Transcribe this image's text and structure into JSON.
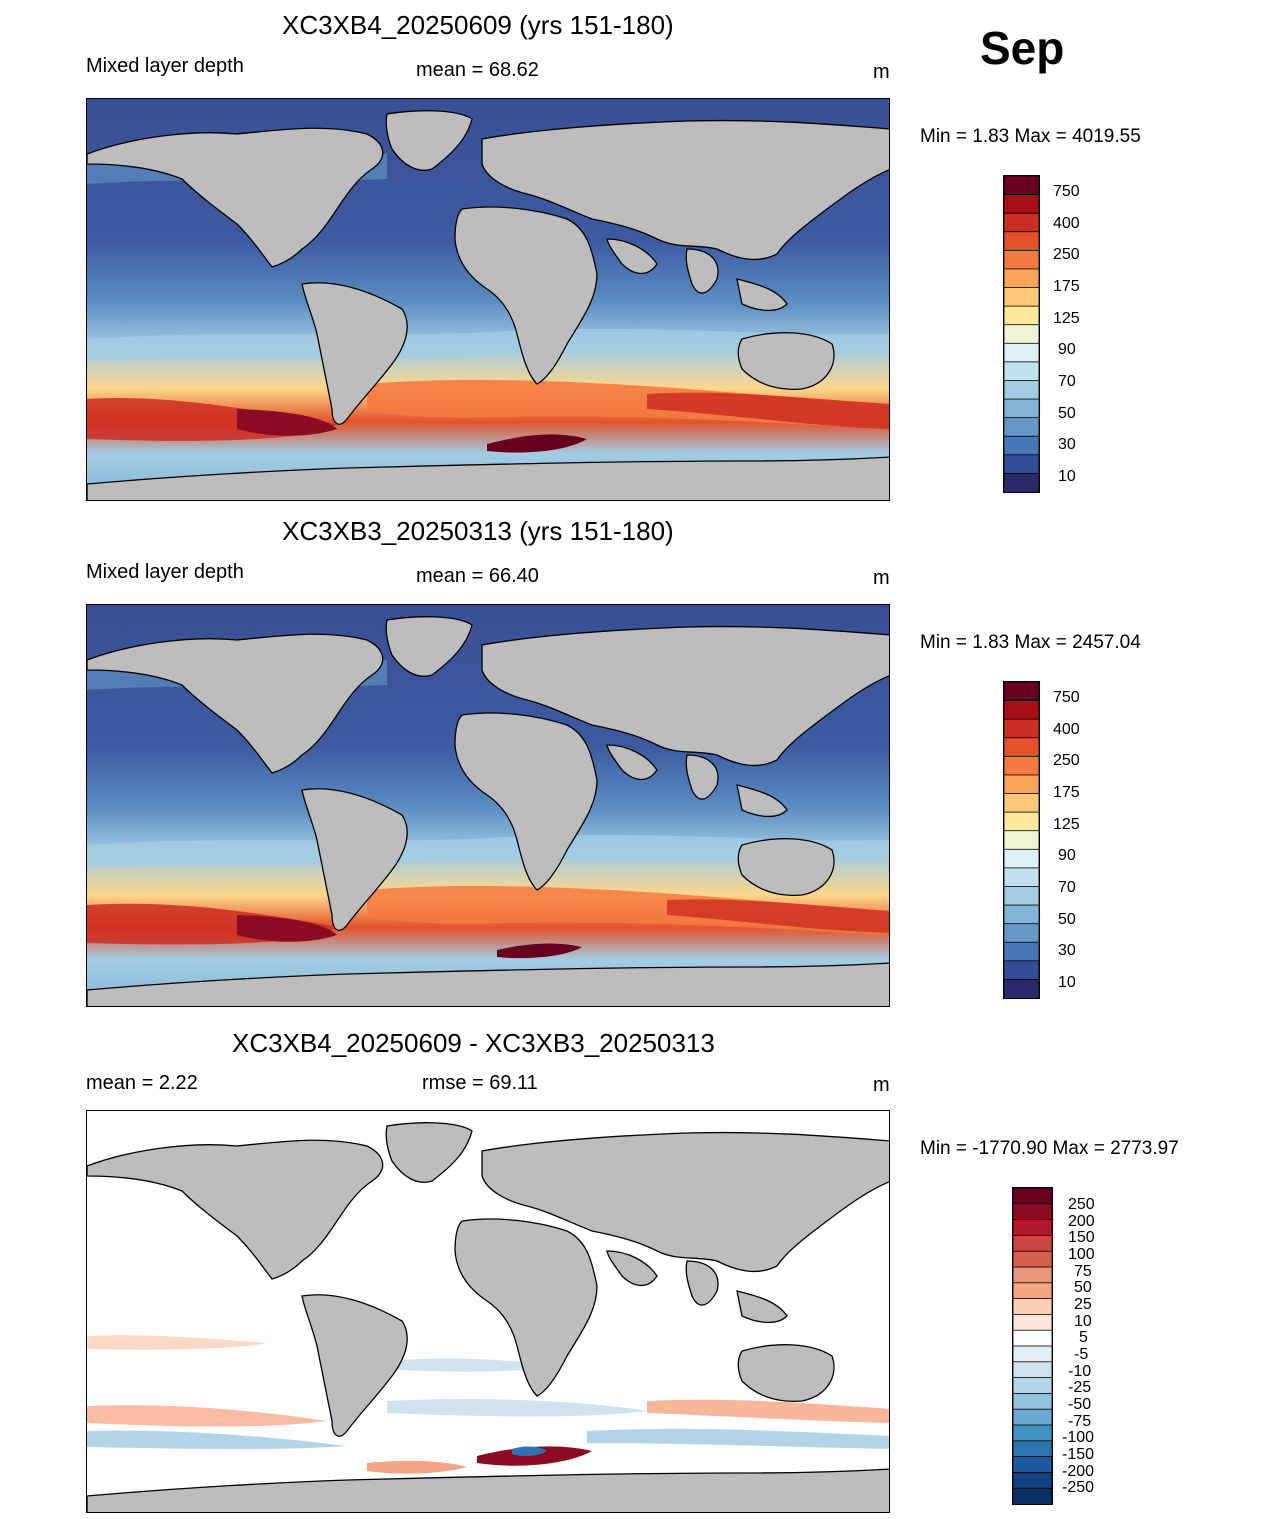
{
  "month": "Sep",
  "panels": [
    {
      "title": "XC3XB4_20250609 (yrs 151-180)",
      "left_label": "Mixed layer depth",
      "center_label": "mean =  68.62",
      "units": "m",
      "minmax": "Min =    1.83 Max = 4019.55",
      "colorbar_labels": [
        "750",
        "400",
        "250",
        "175",
        "125",
        "90",
        "70",
        "50",
        "30",
        "10"
      ]
    },
    {
      "title": "XC3XB3_20250313 (yrs 151-180)",
      "left_label": "Mixed layer depth",
      "center_label": "mean =  66.40",
      "units": "m",
      "minmax": "Min =    1.83 Max = 2457.04",
      "colorbar_labels": [
        "750",
        "400",
        "250",
        "175",
        "125",
        "90",
        "70",
        "50",
        "30",
        "10"
      ]
    },
    {
      "title": "XC3XB4_20250609 - XC3XB3_20250313",
      "left_label": "mean =    2.22",
      "center_label": "rmse =  69.11",
      "units": "m",
      "minmax": "Min = -1770.90 Max = 2773.97",
      "colorbar_labels": [
        "250",
        "200",
        "150",
        "100",
        "75",
        "50",
        "25",
        "10",
        "5",
        "-5",
        "-10",
        "-25",
        "-50",
        "-75",
        "-100",
        "-150",
        "-200",
        "-250"
      ]
    }
  ],
  "colors": {
    "land": "#bdbdbd",
    "seq_scale": [
      "#67001f",
      "#a50f15",
      "#cb2d22",
      "#e3522b",
      "#f57a40",
      "#fca55b",
      "#fdc878",
      "#fee99c",
      "#eef5d3",
      "#dff0f6",
      "#c1e1ee",
      "#a3cde3",
      "#83b5d8",
      "#6598c8",
      "#4777b5",
      "#344d9a",
      "#2a2a6a"
    ],
    "div_scale": [
      "#67001f",
      "#8b0b23",
      "#b2182b",
      "#ca4741",
      "#d6604d",
      "#e9967b",
      "#f4a582",
      "#fbcfb8",
      "#fde6da",
      "#ffffff",
      "#e3eef5",
      "#cfe3ef",
      "#b3d4e6",
      "#92c5de",
      "#6aaad2",
      "#4393c3",
      "#2c73b2",
      "#1a5aa0",
      "#0f4280",
      "#053061"
    ]
  }
}
